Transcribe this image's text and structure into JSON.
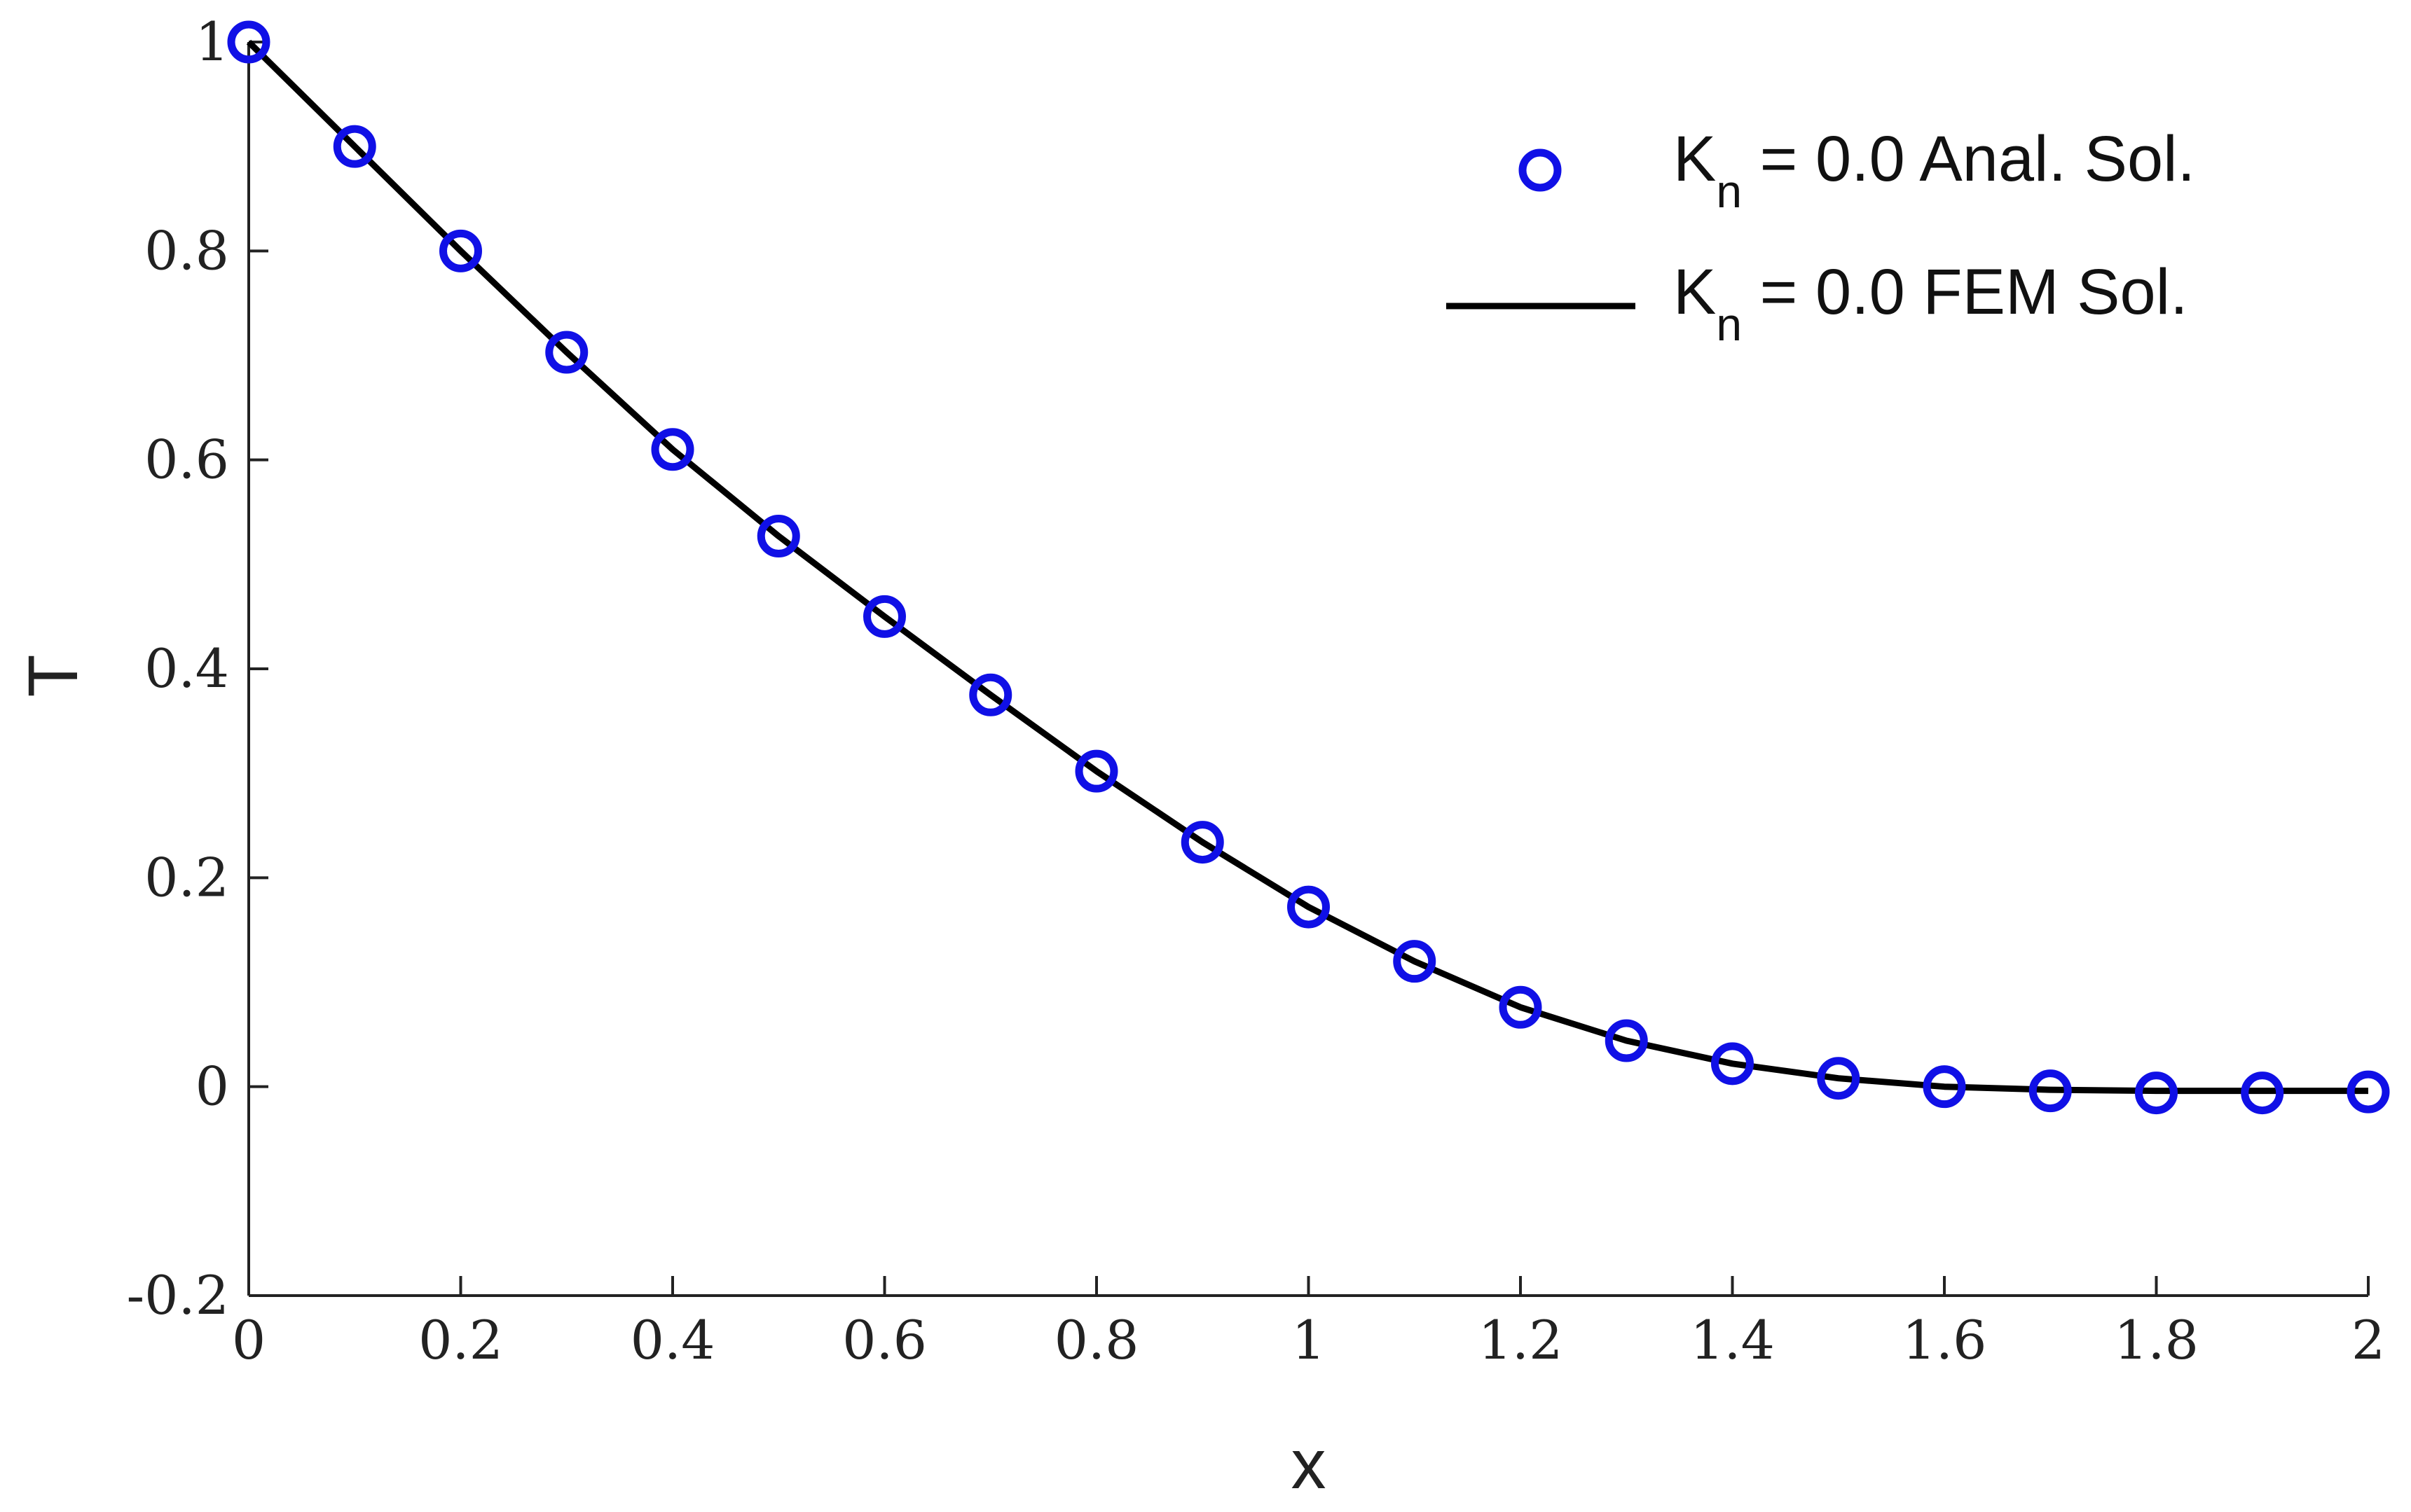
{
  "chart_data": {
    "type": "line",
    "xlabel": "x",
    "ylabel": "T",
    "xlim": [
      0,
      2
    ],
    "ylim": [
      -0.2,
      1
    ],
    "x_ticks": [
      "0",
      "0.2",
      "0.4",
      "0.6",
      "0.8",
      "1",
      "1.2",
      "1.4",
      "1.6",
      "1.8",
      "2"
    ],
    "y_ticks": [
      "-0.2",
      "0",
      "0.2",
      "0.4",
      "0.6",
      "0.8",
      "1"
    ],
    "grid": false,
    "legend_position": "top-right",
    "series": [
      {
        "name_main": "K",
        "name_sub": "n",
        "name_rest": " = 0.0 Anal. Sol.",
        "style": "markers",
        "marker": "open-circle",
        "color": "#1010e6",
        "x": [
          0,
          0.1,
          0.2,
          0.3,
          0.4,
          0.5,
          0.6,
          0.7,
          0.8,
          0.9,
          1.0,
          1.1,
          1.2,
          1.3,
          1.4,
          1.5,
          1.6,
          1.7,
          1.8,
          1.9,
          2.0
        ],
        "y": [
          1.0,
          0.9,
          0.8,
          0.703,
          0.61,
          0.527,
          0.45,
          0.375,
          0.302,
          0.234,
          0.172,
          0.12,
          0.076,
          0.044,
          0.022,
          0.008,
          0.0,
          -0.004,
          -0.006,
          -0.006,
          -0.005
        ]
      },
      {
        "name_main": "K",
        "name_sub": "n",
        "name_rest": " = 0.0 FEM Sol.",
        "style": "line",
        "color": "#000000",
        "x": [
          0,
          0.1,
          0.2,
          0.3,
          0.4,
          0.5,
          0.6,
          0.7,
          0.8,
          0.9,
          1.0,
          1.1,
          1.2,
          1.3,
          1.4,
          1.5,
          1.6,
          1.7,
          1.8,
          1.9,
          2.0
        ],
        "y": [
          1.0,
          0.9,
          0.8,
          0.703,
          0.61,
          0.527,
          0.45,
          0.375,
          0.302,
          0.234,
          0.172,
          0.12,
          0.076,
          0.044,
          0.022,
          0.008,
          0.0,
          -0.003,
          -0.004,
          -0.004,
          -0.004
        ]
      }
    ]
  }
}
